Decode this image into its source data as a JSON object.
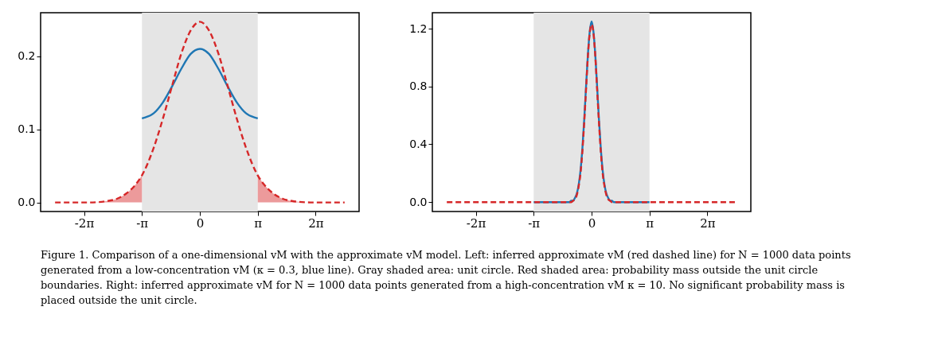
{
  "chart_data": [
    {
      "type": "line",
      "xlim": [
        -8.639,
        8.639
      ],
      "ylim": [
        -0.0124,
        0.2594
      ],
      "xticks": [
        {
          "value": -6.2832,
          "label": "-2π"
        },
        {
          "value": -3.1416,
          "label": "-π"
        },
        {
          "value": 0,
          "label": "0"
        },
        {
          "value": 3.1416,
          "label": "π"
        },
        {
          "value": 6.2832,
          "label": "2π"
        }
      ],
      "yticks": [
        {
          "value": 0,
          "label": "0.0"
        },
        {
          "value": 0.1,
          "label": "0.1"
        },
        {
          "value": 0.2,
          "label": "0.2"
        }
      ],
      "grid": false,
      "bands": [
        {
          "axis": "x",
          "from": -3.1416,
          "to": 3.1416,
          "color": "#e5e5e5"
        }
      ],
      "series": [
        {
          "type": "area",
          "color": "#ec9a9b",
          "x": [
            -7.854,
            -7,
            -6,
            -5,
            -4.5,
            -4,
            -3.5,
            -3.1416
          ],
          "values": [
            0,
            0,
            0,
            0.002,
            0.005,
            0.012,
            0.024,
            0.037
          ]
        },
        {
          "type": "area",
          "color": "#ec9a9b",
          "x": [
            3.1416,
            3.5,
            4,
            4.5,
            5,
            6,
            7,
            7.854
          ],
          "values": [
            0.037,
            0.024,
            0.012,
            0.005,
            0.002,
            0,
            0,
            0
          ]
        },
        {
          "color": "#1f77b4",
          "line_style": "solid",
          "x": [
            -3.1416,
            -3,
            -2.5,
            -2,
            -1.5,
            -1,
            -0.5,
            0,
            0.5,
            1,
            1.5,
            2,
            2.5,
            3,
            3.1416
          ],
          "values": [
            0.115,
            0.116,
            0.122,
            0.137,
            0.159,
            0.183,
            0.203,
            0.21,
            0.203,
            0.183,
            0.159,
            0.137,
            0.122,
            0.116,
            0.115
          ]
        },
        {
          "color": "#d62728",
          "line_style": "dashed",
          "x": [
            -7.854,
            -7,
            -6,
            -5,
            -4.5,
            -4,
            -3.5,
            -3.1416,
            -2.5,
            -2,
            -1.5,
            -1,
            -0.5,
            0,
            0.5,
            1,
            1.5,
            2,
            2.5,
            3.1416,
            3.5,
            4,
            4.5,
            5,
            6,
            7,
            7.854
          ],
          "values": [
            0,
            0,
            0,
            0.002,
            0.005,
            0.012,
            0.024,
            0.037,
            0.075,
            0.115,
            0.16,
            0.204,
            0.235,
            0.247,
            0.235,
            0.204,
            0.16,
            0.115,
            0.075,
            0.037,
            0.024,
            0.012,
            0.005,
            0.002,
            0,
            0,
            0
          ]
        }
      ],
      "annotations": [
        "Figure 1.  Comparison of a one-dimensional vM with the approximate vM model. Left: inferred approximate vM (red dashed line) for N = 1000 data points generated from a low-concentration vM (κ = 0.3, blue line). Gray shaded area: unit circle. Red shaded area: probability mass outside the unit circle boundaries. Right: inferred approximate vM for N = 1000 data points generated from a high-concentration vM κ = 10. No significant probability mass is placed outside the unit circle."
      ]
    },
    {
      "type": "line",
      "xlim": [
        -8.639,
        8.639
      ],
      "ylim": [
        -0.065,
        1.31
      ],
      "xticks": [
        {
          "value": -6.2832,
          "label": "-2π"
        },
        {
          "value": -3.1416,
          "label": "-π"
        },
        {
          "value": 0,
          "label": "0"
        },
        {
          "value": 3.1416,
          "label": "π"
        },
        {
          "value": 6.2832,
          "label": "2π"
        }
      ],
      "yticks": [
        {
          "value": 0,
          "label": "0.0"
        },
        {
          "value": 0.4,
          "label": "0.4"
        },
        {
          "value": 0.8,
          "label": "0.8"
        },
        {
          "value": 1.2,
          "label": "1.2"
        }
      ],
      "grid": false,
      "bands": [
        {
          "axis": "x",
          "from": -3.1416,
          "to": 3.1416,
          "color": "#e5e5e5"
        }
      ],
      "series": [
        {
          "color": "#1f77b4",
          "line_style": "solid",
          "x": [
            -3.1416,
            -1.5,
            -1.2,
            -1.1,
            -1,
            -0.9,
            -0.8,
            -0.7,
            -0.6,
            -0.5,
            -0.4,
            -0.3,
            -0.2,
            -0.1,
            0,
            0.1,
            0.2,
            0.3,
            0.4,
            0.5,
            0.6,
            0.7,
            0.8,
            0.9,
            1,
            1.1,
            1.2,
            1.5,
            3.1416
          ],
          "values": [
            0,
            0,
            0,
            0.01,
            0.01,
            0.03,
            0.06,
            0.12,
            0.22,
            0.37,
            0.57,
            0.8,
            1.02,
            1.18,
            1.25,
            1.18,
            1.02,
            0.8,
            0.57,
            0.37,
            0.22,
            0.12,
            0.06,
            0.03,
            0.01,
            0.01,
            0,
            0,
            0
          ]
        },
        {
          "color": "#d62728",
          "line_style": "dashed",
          "x": [
            -7.854,
            -4,
            -2,
            -1.5,
            -1.2,
            -1.1,
            -1,
            -0.9,
            -0.8,
            -0.7,
            -0.6,
            -0.5,
            -0.4,
            -0.3,
            -0.2,
            -0.1,
            0,
            0.1,
            0.2,
            0.3,
            0.4,
            0.5,
            0.6,
            0.7,
            0.8,
            0.9,
            1,
            1.1,
            1.2,
            1.5,
            2,
            4,
            7.854
          ],
          "values": [
            0,
            0,
            0,
            0,
            0,
            0,
            0.01,
            0.02,
            0.05,
            0.11,
            0.2,
            0.35,
            0.55,
            0.78,
            1.01,
            1.17,
            1.23,
            1.17,
            1.01,
            0.78,
            0.55,
            0.35,
            0.2,
            0.11,
            0.05,
            0.02,
            0.01,
            0,
            0,
            0,
            0,
            0,
            0
          ]
        }
      ]
    }
  ]
}
